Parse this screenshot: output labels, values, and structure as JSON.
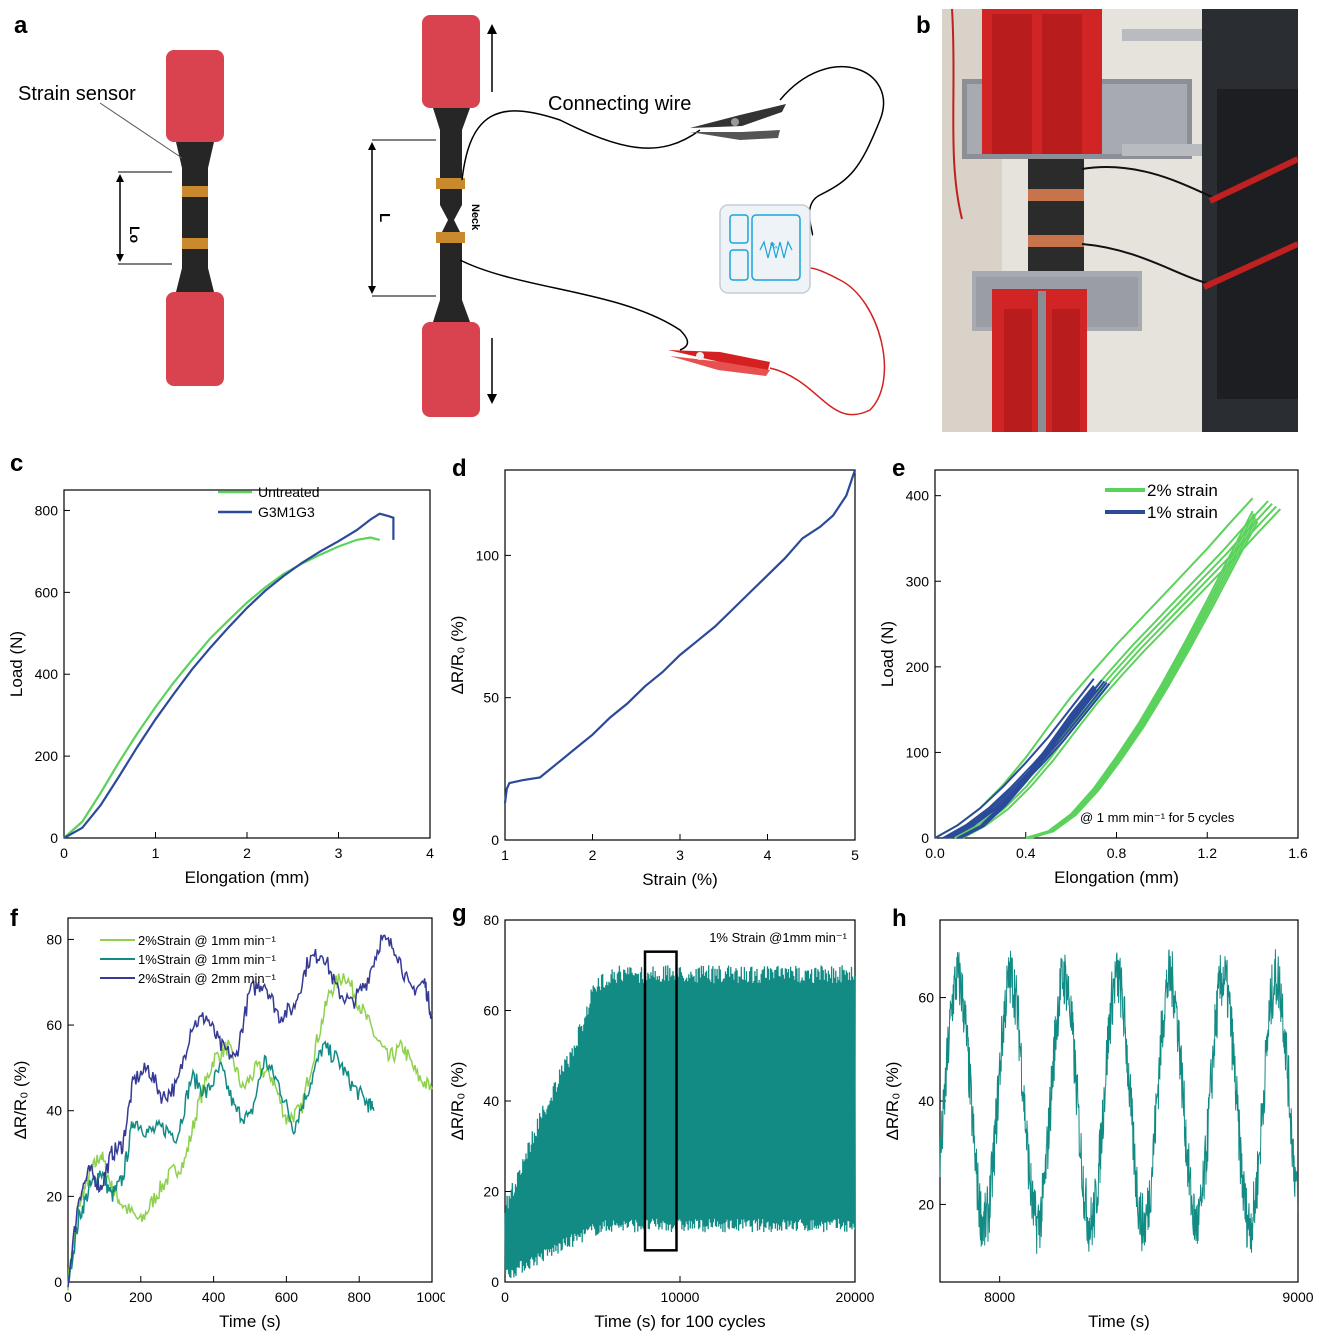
{
  "panels": {
    "a": {
      "label": "a",
      "strain_sensor": "Strain sensor",
      "lo": "Lo",
      "l": "L",
      "neck": "Neck",
      "connecting_wire": "Connecting wire",
      "meter": "Rₓ"
    },
    "b": {
      "label": "b"
    },
    "c": {
      "label": "c"
    },
    "d": {
      "label": "d"
    },
    "e": {
      "label": "e"
    },
    "f": {
      "label": "f"
    },
    "g": {
      "label": "g"
    },
    "h": {
      "label": "h"
    }
  },
  "colors": {
    "grip_red": "#d9434f",
    "specimen": "#262626",
    "copper": "#c98a2e",
    "meter_blue": "#1aa3d9",
    "wire_red": "#d42020",
    "green": "#5bd25b",
    "navy": "#2c4a9a",
    "lightgreen": "#8fd14f",
    "teal": "#138b85",
    "indigo": "#363a94"
  },
  "chart_data": [
    {
      "id": "c",
      "type": "line",
      "xlabel": "Elongation (mm)",
      "ylabel": "Load (N)",
      "xlim": [
        0,
        4
      ],
      "ylim": [
        0,
        850
      ],
      "xticks": [
        0,
        1,
        2,
        3,
        4
      ],
      "yticks": [
        0,
        200,
        400,
        600,
        800
      ],
      "legend": "top-right",
      "series": [
        {
          "name": "Untreated",
          "color": "#5bd25b",
          "x": [
            0,
            0.2,
            0.4,
            0.6,
            0.8,
            1.0,
            1.2,
            1.4,
            1.6,
            1.8,
            2.0,
            2.2,
            2.4,
            2.6,
            2.8,
            3.0,
            3.2,
            3.35,
            3.45
          ],
          "y": [
            0,
            40,
            110,
            185,
            255,
            320,
            380,
            435,
            488,
            532,
            575,
            612,
            645,
            670,
            692,
            712,
            728,
            734,
            728
          ]
        },
        {
          "name": "G3M1G3",
          "color": "#2c4a9a",
          "x": [
            0,
            0.2,
            0.4,
            0.6,
            0.8,
            1.0,
            1.2,
            1.4,
            1.6,
            1.8,
            2.0,
            2.2,
            2.4,
            2.6,
            2.8,
            3.0,
            3.2,
            3.35,
            3.45,
            3.55,
            3.6,
            3.6
          ],
          "y": [
            0,
            25,
            80,
            150,
            222,
            290,
            352,
            412,
            465,
            515,
            562,
            604,
            640,
            672,
            700,
            725,
            752,
            778,
            792,
            786,
            782,
            728
          ]
        }
      ]
    },
    {
      "id": "d",
      "type": "line",
      "xlabel": "Strain (%)",
      "ylabel": "ΔR/R₀ (%)",
      "xlim": [
        1,
        5
      ],
      "ylim": [
        0,
        130
      ],
      "xticks": [
        1,
        2,
        3,
        4,
        5
      ],
      "yticks": [
        0,
        50,
        100
      ],
      "series": [
        {
          "color": "#2c4a9a",
          "x": [
            1.0,
            1.02,
            1.05,
            1.2,
            1.4,
            1.6,
            1.8,
            2.0,
            2.2,
            2.4,
            2.6,
            2.8,
            3.0,
            3.2,
            3.4,
            3.6,
            3.8,
            4.0,
            4.2,
            4.4,
            4.6,
            4.75,
            4.9,
            5.0
          ],
          "y": [
            13,
            18,
            20,
            21,
            22,
            27,
            32,
            37,
            43,
            48,
            54,
            59,
            65,
            70,
            75,
            81,
            87,
            93,
            99,
            106,
            110,
            114,
            121,
            130
          ]
        }
      ]
    },
    {
      "id": "e",
      "type": "line",
      "xlabel": "Elongation (mm)",
      "ylabel": "Load (N)",
      "xlim": [
        0,
        1.6
      ],
      "ylim": [
        0,
        430
      ],
      "xticks": [
        0.0,
        0.4,
        0.8,
        1.2,
        1.6
      ],
      "yticks": [
        0,
        100,
        200,
        300,
        400
      ],
      "legend": "top-right",
      "annotation": "@ 1 mm min⁻¹ for 5 cycles",
      "series": [
        {
          "name": "2% strain",
          "color": "#5bd25b",
          "loading": {
            "x": [
              0,
              0.1,
              0.2,
              0.3,
              0.4,
              0.5,
              0.6,
              0.7,
              0.8,
              0.9,
              1.0,
              1.1,
              1.2,
              1.3,
              1.4
            ],
            "y": [
              0,
              15,
              35,
              62,
              94,
              130,
              165,
              196,
              226,
              254,
              282,
              310,
              338,
              368,
              397
            ]
          },
          "unloading": {
            "x": [
              1.4,
              1.3,
              1.2,
              1.1,
              1.0,
              0.9,
              0.8,
              0.7,
              0.6,
              0.5,
              0.4
            ],
            "y": [
              382,
              330,
              278,
              228,
              180,
              135,
              95,
              58,
              28,
              8,
              0
            ]
          }
        },
        {
          "name": "1% strain",
          "color": "#2c4a9a",
          "loading": {
            "x": [
              0,
              0.1,
              0.2,
              0.3,
              0.4,
              0.5,
              0.6,
              0.7
            ],
            "y": [
              0,
              15,
              35,
              60,
              88,
              118,
              152,
              186
            ]
          },
          "unloading": {
            "x": [
              0.7,
              0.6,
              0.5,
              0.4,
              0.3,
              0.2,
              0.1
            ],
            "y": [
              178,
              145,
              108,
              72,
              40,
              14,
              0
            ]
          }
        }
      ]
    },
    {
      "id": "f",
      "type": "line",
      "xlabel": "Time (s)",
      "ylabel": "ΔR/R₀ (%)",
      "xlim": [
        0,
        1000
      ],
      "ylim": [
        0,
        85
      ],
      "xticks": [
        0,
        200,
        400,
        600,
        800,
        1000
      ],
      "yticks": [
        0,
        20,
        40,
        60,
        80
      ],
      "legend": "top-left",
      "series": [
        {
          "name": "2%Strain @ 1mm min⁻¹",
          "color": "#8fd14f",
          "x": [
            0,
            30,
            60,
            90,
            120,
            150,
            200,
            240,
            280,
            320,
            360,
            400,
            440,
            480,
            520,
            560,
            600,
            640,
            680,
            720,
            760,
            800,
            840,
            880,
            920,
            960,
            1000
          ],
          "y": [
            0,
            18,
            25,
            30,
            22,
            18,
            14,
            20,
            25,
            28,
            42,
            52,
            55,
            45,
            50,
            48,
            38,
            40,
            55,
            68,
            72,
            65,
            58,
            52,
            55,
            48,
            45
          ]
        },
        {
          "name": "1%Strain @ 1mm min⁻¹",
          "color": "#138b85",
          "x": [
            0,
            30,
            60,
            90,
            120,
            150,
            180,
            220,
            260,
            300,
            340,
            380,
            420,
            460,
            500,
            540,
            580,
            620,
            660,
            700,
            740,
            780,
            820,
            840
          ],
          "y": [
            0,
            15,
            22,
            26,
            20,
            24,
            38,
            35,
            36,
            34,
            48,
            44,
            50,
            40,
            38,
            52,
            46,
            36,
            45,
            55,
            52,
            46,
            42,
            40
          ]
        },
        {
          "name": "2%Strain @ 2mm min⁻¹",
          "color": "#363a94",
          "x": [
            0,
            30,
            60,
            90,
            120,
            150,
            180,
            220,
            260,
            300,
            340,
            380,
            420,
            460,
            500,
            540,
            580,
            620,
            660,
            700,
            740,
            780,
            820,
            860,
            900,
            940,
            980,
            1000
          ],
          "y": [
            0,
            20,
            26,
            22,
            30,
            32,
            47,
            50,
            43,
            46,
            60,
            62,
            55,
            52,
            68,
            70,
            62,
            64,
            75,
            77,
            68,
            65,
            70,
            80,
            78,
            68,
            70,
            62
          ]
        }
      ]
    },
    {
      "id": "g",
      "type": "line",
      "xlabel": "Time (s) for 100 cycles",
      "ylabel": "ΔR/R₀ (%)",
      "xlim": [
        0,
        20000
      ],
      "ylim": [
        0,
        80
      ],
      "xticks": [
        0,
        10000,
        20000
      ],
      "yticks": [
        0,
        20,
        40,
        60,
        80
      ],
      "annotation": "1% Strain @1mm min⁻¹",
      "highlight_box": {
        "x": [
          8000,
          9800
        ],
        "y": [
          7,
          73
        ]
      },
      "series": [
        {
          "color": "#138b85",
          "envelope_x": [
            0,
            1000,
            2000,
            3000,
            4000,
            5000,
            6000,
            8000,
            10000,
            14000,
            20000
          ],
          "upper": [
            18,
            28,
            38,
            46,
            54,
            66,
            70,
            70,
            70,
            70,
            70
          ],
          "lower": [
            0,
            2,
            4,
            6,
            8,
            10,
            11,
            11,
            11,
            11,
            11
          ]
        }
      ]
    },
    {
      "id": "h",
      "type": "line",
      "xlabel": "Time (s)",
      "ylabel": "ΔR/R₀ (%)",
      "xlim": [
        7800,
        9000
      ],
      "ylim": [
        5,
        75
      ],
      "xticks": [
        8000,
        9000
      ],
      "yticks": [
        20,
        40,
        60
      ],
      "series": [
        {
          "color": "#138b85",
          "period_s": 178,
          "min": 12,
          "max": 68
        }
      ]
    }
  ]
}
